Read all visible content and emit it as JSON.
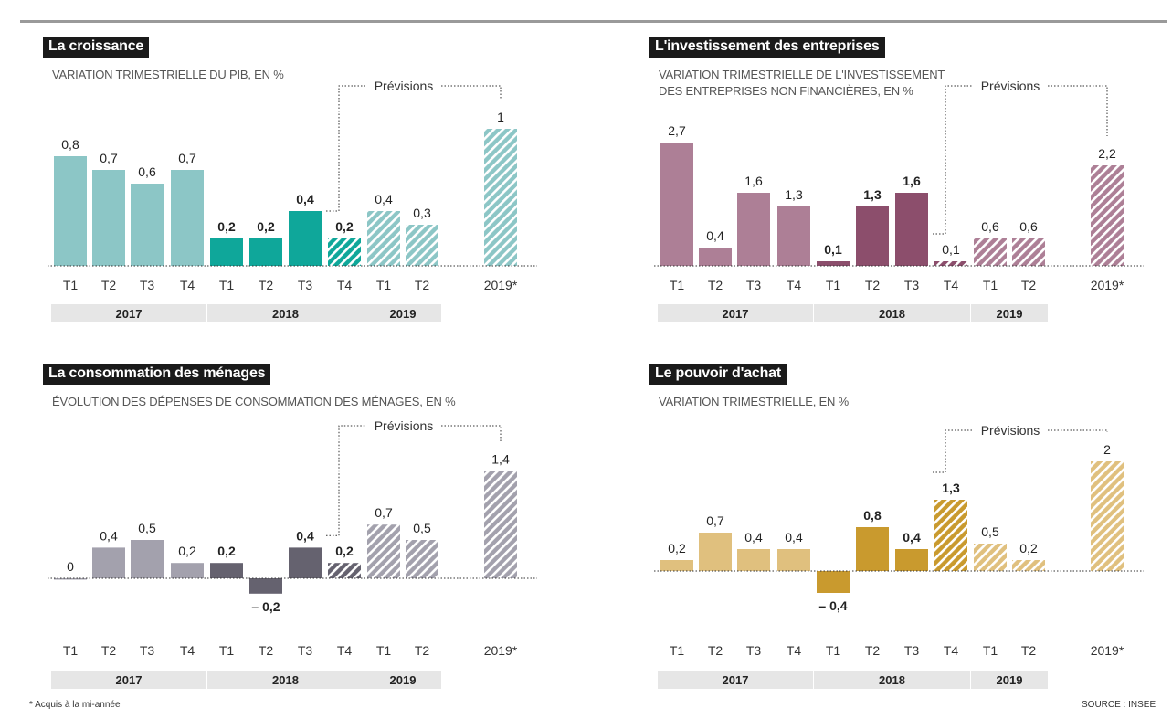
{
  "footnote": "* Acquis à la mi-année",
  "source": "SOURCE : INSEE",
  "forecast_label": "Prévisions",
  "chart_data": [
    {
      "type": "bar",
      "title": "La croissance",
      "subtitle": "VARIATION TRIMESTRIELLE DU PIB, EN %",
      "categories": [
        "T1",
        "T2",
        "T3",
        "T4",
        "T1",
        "T2",
        "T3",
        "T4",
        "T1",
        "T2",
        "2019*"
      ],
      "years": [
        {
          "label": "2017",
          "span": [
            0,
            3
          ]
        },
        {
          "label": "2018",
          "span": [
            4,
            7
          ]
        },
        {
          "label": "2019",
          "span": [
            8,
            9
          ]
        }
      ],
      "values": [
        0.8,
        0.7,
        0.6,
        0.7,
        0.2,
        0.2,
        0.4,
        0.2,
        0.4,
        0.3,
        1
      ],
      "value_labels": [
        "0,8",
        "0,7",
        "0,6",
        "0,7",
        "0,2",
        "0,2",
        "0,4",
        "0,2",
        "0,4",
        "0,3",
        "1"
      ],
      "bold_labels": [
        4,
        5,
        6,
        7
      ],
      "forecast_from": 7,
      "colors": {
        "y2017": "#8cc6c6",
        "y2018": "#0fa79a",
        "forecast": "#8cc6c6",
        "forecast_dark": "#0fa79a"
      }
    },
    {
      "type": "bar",
      "title": "L'investissement des entreprises",
      "subtitle": "VARIATION TRIMESTRIELLE DE L'INVESTISSEMENT\nDES ENTREPRISES NON FINANCIÈRES, EN %",
      "categories": [
        "T1",
        "T2",
        "T3",
        "T4",
        "T1",
        "T2",
        "T3",
        "T4",
        "T1",
        "T2",
        "2019*"
      ],
      "years": [
        {
          "label": "2017",
          "span": [
            0,
            3
          ]
        },
        {
          "label": "2018",
          "span": [
            4,
            7
          ]
        },
        {
          "label": "2019",
          "span": [
            8,
            9
          ]
        }
      ],
      "values": [
        2.7,
        0.4,
        1.6,
        1.3,
        0.1,
        1.3,
        1.6,
        0.1,
        0.6,
        0.6,
        2.2
      ],
      "value_labels": [
        "2,7",
        "0,4",
        "1,6",
        "1,3",
        "0,1",
        "1,3",
        "1,6",
        "0,1",
        "0,6",
        "0,6",
        "2,2"
      ],
      "bold_labels": [
        4,
        5,
        6
      ],
      "forecast_from": 7,
      "colors": {
        "y2017": "#ad7f96",
        "y2018": "#8c4e6c",
        "forecast": "#ad7f96",
        "forecast_dark": "#8c4e6c"
      }
    },
    {
      "type": "bar",
      "title": "La consommation des ménages",
      "subtitle": "ÉVOLUTION DES DÉPENSES DE CONSOMMATION DES MÉNAGES, EN %",
      "categories": [
        "T1",
        "T2",
        "T3",
        "T4",
        "T1",
        "T2",
        "T3",
        "T4",
        "T1",
        "T2",
        "2019*"
      ],
      "years": [
        {
          "label": "2017",
          "span": [
            0,
            3
          ]
        },
        {
          "label": "2018",
          "span": [
            4,
            7
          ]
        },
        {
          "label": "2019",
          "span": [
            8,
            9
          ]
        }
      ],
      "values": [
        0,
        0.4,
        0.5,
        0.2,
        0.2,
        -0.2,
        0.4,
        0.2,
        0.7,
        0.5,
        1.4
      ],
      "value_labels": [
        "0",
        "0,4",
        "0,5",
        "0,2",
        "0,2",
        "– 0,2",
        "0,4",
        "0,2",
        "0,7",
        "0,5",
        "1,4"
      ],
      "bold_labels": [
        4,
        5,
        6,
        7
      ],
      "forecast_from": 7,
      "colors": {
        "y2017": "#a3a1ad",
        "y2018": "#65626f",
        "forecast": "#a3a1ad",
        "forecast_dark": "#65626f"
      }
    },
    {
      "type": "bar",
      "title": "Le pouvoir d'achat",
      "subtitle": "VARIATION TRIMESTRIELLE, EN %",
      "categories": [
        "T1",
        "T2",
        "T3",
        "T4",
        "T1",
        "T2",
        "T3",
        "T4",
        "T1",
        "T2",
        "2019*"
      ],
      "years": [
        {
          "label": "2017",
          "span": [
            0,
            3
          ]
        },
        {
          "label": "2018",
          "span": [
            4,
            7
          ]
        },
        {
          "label": "2019",
          "span": [
            8,
            9
          ]
        }
      ],
      "values": [
        0.2,
        0.7,
        0.4,
        0.4,
        -0.4,
        0.8,
        0.4,
        1.3,
        0.5,
        0.2,
        2
      ],
      "value_labels": [
        "0,2",
        "0,7",
        "0,4",
        "0,4",
        "– 0,4",
        "0,8",
        "0,4",
        "1,3",
        "0,5",
        "0,2",
        "2"
      ],
      "bold_labels": [
        4,
        5,
        6,
        7
      ],
      "forecast_from": 7,
      "colors": {
        "y2017": "#e0c07e",
        "y2018": "#c99a2e",
        "forecast": "#e0c07e",
        "forecast_dark": "#c99a2e"
      }
    }
  ]
}
